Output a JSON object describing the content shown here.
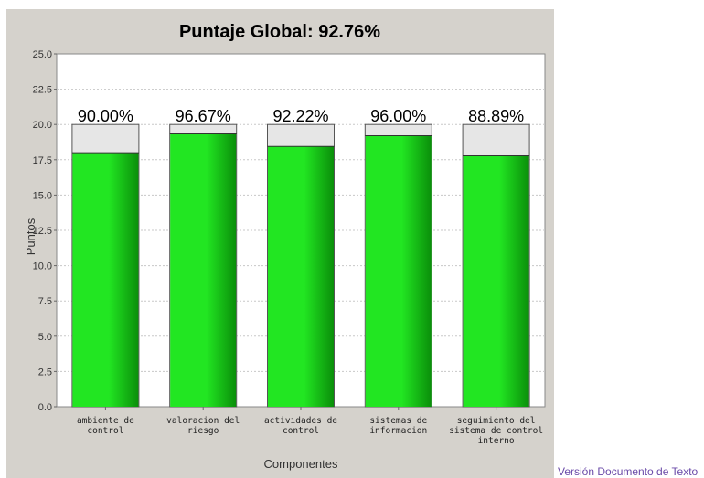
{
  "chart_data": {
    "type": "bar",
    "title": "Puntaje Global: 92.76%",
    "xlabel": "Componentes",
    "ylabel": "Puntos",
    "ylim": [
      0,
      25
    ],
    "yticks": [
      "0.0",
      "2.5",
      "5.0",
      "7.5",
      "10.0",
      "12.5",
      "15.0",
      "17.5",
      "20.0",
      "22.5",
      "25.0"
    ],
    "max_per_category": 20,
    "categories": [
      [
        "ambiente de",
        "control"
      ],
      [
        "valoracion del",
        "riesgo"
      ],
      [
        "actividades de",
        "control"
      ],
      [
        "sistemas de",
        "informacion"
      ],
      [
        "seguimiento del",
        "sistema de control",
        "interno"
      ]
    ],
    "values": [
      18.0,
      19.33,
      18.44,
      19.2,
      17.78
    ],
    "percent_labels": [
      "90.00%",
      "96.67%",
      "92.22%",
      "96.00%",
      "88.89%"
    ],
    "colors": {
      "bar_light": "#22e622",
      "bar_dark": "#0a8f0a",
      "max_box": "#e6e6e6",
      "panel": "#d5d2cc",
      "grid": "#c8c8c8"
    },
    "grid": true
  },
  "footer": {
    "link_text": "Versión Documento de Texto"
  }
}
